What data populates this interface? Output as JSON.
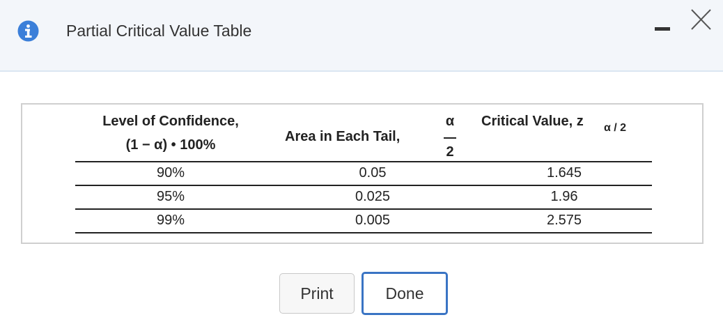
{
  "dialog": {
    "title": "Partial Critical Value Table",
    "table": {
      "headers": [
        {
          "line1": "Level of Confidence,",
          "line2": "(1 − α) • 100%"
        },
        {
          "text": "Area in Each Tail,",
          "numerator": "α",
          "denominator": "2"
        },
        {
          "text": "Critical Value, z",
          "subscript": "α / 2"
        }
      ],
      "rows": [
        [
          "90%",
          "0.05",
          "1.645"
        ],
        [
          "95%",
          "0.025",
          "1.96"
        ],
        [
          "99%",
          "0.005",
          "2.575"
        ]
      ]
    },
    "buttons": [
      "Print",
      "Done"
    ]
  }
}
